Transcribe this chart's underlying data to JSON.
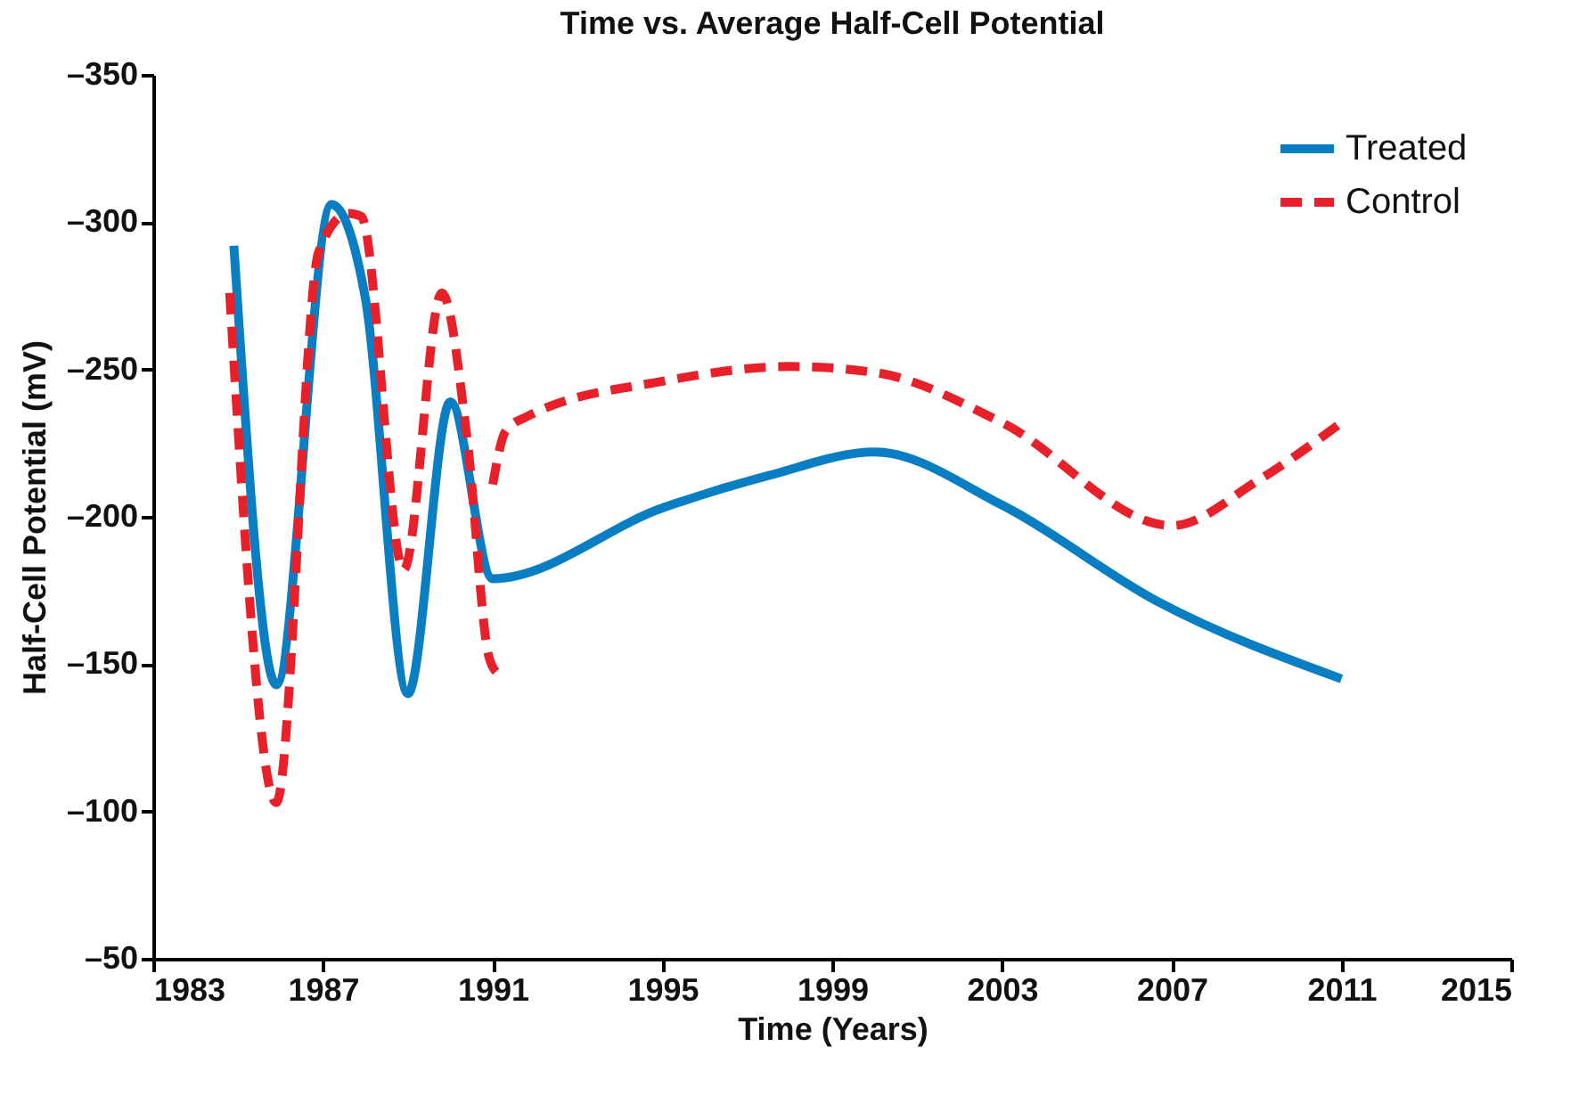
{
  "chart_data": {
    "type": "line",
    "title": "Time vs. Average Half-Cell Potential",
    "xlabel": "Time (Years)",
    "ylabel": "Half-Cell Potential (mV)",
    "series": [
      {
        "name": "Treated",
        "color": "#0a7ec2",
        "line_style": "solid",
        "x": [
          1984.9,
          1985.9,
          1987.2,
          1988.0,
          1989.0,
          1990.0,
          1991.0,
          1995.0,
          1997.5,
          2000.0,
          2003.0,
          2006.7,
          2011.0
        ],
        "values": [
          -292,
          -143,
          -306,
          -274,
          -140,
          -239,
          -179,
          -203,
          -214,
          -222,
          -204,
          -171,
          -145
        ]
      },
      {
        "name": "Control",
        "color": "#e8202a",
        "line_style": "dashed",
        "x": [
          1984.8,
          1985.9,
          1986.9,
          1987.6,
          1987.9,
          1988.9,
          1989.8,
          1990.4,
          1990.9,
          1991.1,
          1991.05,
          1991.0,
          1991.3,
          1991.8,
          1995.0,
          1998.0,
          2000.0,
          2003.0,
          2007.0,
          2009.0,
          2011.0
        ],
        "values": [
          -276,
          -103,
          -290,
          -303,
          -302,
          -182,
          -276,
          -226,
          -153,
          -147,
          null,
          -211,
          -229,
          -234,
          -246,
          -251,
          -249,
          -232,
          -197,
          -212,
          -232
        ]
      }
    ],
    "xlim": [
      1983,
      2015
    ],
    "xticks": [
      1983,
      1987,
      1991,
      1995,
      1999,
      2003,
      2007,
      2011,
      2015
    ],
    "ylim": [
      -50,
      -350
    ],
    "yticks": [
      {
        "value": -350,
        "label": "–350"
      },
      {
        "value": -300,
        "label": "–300"
      },
      {
        "value": -250,
        "label": "–250"
      },
      {
        "value": -200,
        "label": "–200"
      },
      {
        "value": -150,
        "label": "–150"
      },
      {
        "value": -100,
        "label": "–100"
      },
      {
        "value": -50,
        "label": "–50"
      }
    ],
    "grid": false,
    "legend": "top right"
  }
}
